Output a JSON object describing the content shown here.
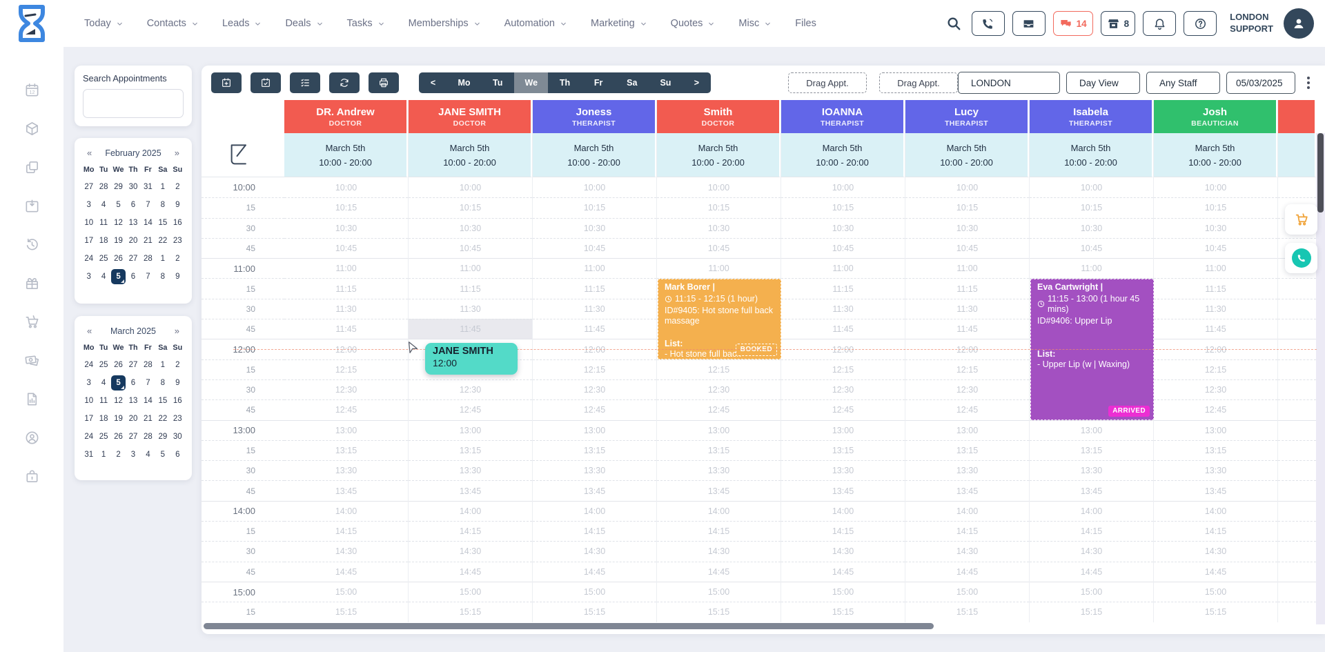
{
  "topbar": {
    "nav": [
      {
        "label": "Today",
        "dropdown": true
      },
      {
        "label": "Contacts",
        "dropdown": true
      },
      {
        "label": "Leads",
        "dropdown": true
      },
      {
        "label": "Deals",
        "dropdown": true
      },
      {
        "label": "Tasks",
        "dropdown": true
      },
      {
        "label": "Memberships",
        "dropdown": true
      },
      {
        "label": "Automation",
        "dropdown": true
      },
      {
        "label": "Marketing",
        "dropdown": true
      },
      {
        "label": "Quotes",
        "dropdown": true
      },
      {
        "label": "Misc",
        "dropdown": true
      },
      {
        "label": "Files",
        "dropdown": false
      }
    ],
    "chat_count": "14",
    "store_count": "8",
    "user_line1": "LONDON",
    "user_line2": "SUPPORT"
  },
  "sidebar_icons": [
    "calendar-12",
    "package",
    "copy",
    "calendar-import",
    "history",
    "gift",
    "cart",
    "payments",
    "report",
    "account",
    "case-lock"
  ],
  "search_panel": {
    "title": "Search Appointments",
    "value": ""
  },
  "calendars": [
    {
      "title": "February 2025",
      "prev": "«",
      "next": "»",
      "dow": [
        "Mo",
        "Tu",
        "We",
        "Th",
        "Fr",
        "Sa",
        "Su"
      ],
      "weeks": [
        [
          27,
          28,
          29,
          30,
          31,
          1,
          2
        ],
        [
          3,
          4,
          5,
          6,
          7,
          8,
          9
        ],
        [
          10,
          11,
          12,
          13,
          14,
          15,
          16
        ],
        [
          17,
          18,
          19,
          20,
          21,
          22,
          23
        ],
        [
          24,
          25,
          26,
          27,
          28,
          1,
          2
        ],
        [
          3,
          4,
          5,
          6,
          7,
          8,
          9
        ]
      ],
      "selected": {
        "week": 5,
        "day": 2
      }
    },
    {
      "title": "March 2025",
      "prev": "«",
      "next": "»",
      "dow": [
        "Mo",
        "Tu",
        "We",
        "Th",
        "Fr",
        "Sa",
        "Su"
      ],
      "weeks": [
        [
          24,
          25,
          26,
          27,
          28,
          1,
          2
        ],
        [
          3,
          4,
          5,
          6,
          7,
          8,
          9
        ],
        [
          10,
          11,
          12,
          13,
          14,
          15,
          16
        ],
        [
          17,
          18,
          19,
          20,
          21,
          22,
          23
        ],
        [
          24,
          25,
          26,
          27,
          28,
          29,
          30
        ],
        [
          31,
          1,
          2,
          3,
          4,
          5,
          6
        ]
      ],
      "selected": {
        "week": 1,
        "day": 2
      }
    }
  ],
  "toolbar": {
    "icon_buttons": [
      "calendar-add",
      "calendar-check",
      "checklist",
      "refresh",
      "print"
    ],
    "week_nav": {
      "prev": "<",
      "next": ">",
      "days": [
        "Mo",
        "Tu",
        "We",
        "Th",
        "Fr",
        "Sa",
        "Su"
      ],
      "active_day": "We"
    },
    "drag_buttons": [
      "Drag Appt.",
      "Drag Appt."
    ],
    "filters": [
      {
        "value": "LONDON"
      },
      {
        "value": "Day View"
      },
      {
        "value": "Any Staff"
      },
      {
        "value": "05/03/2025"
      }
    ]
  },
  "schedule": {
    "staff": [
      {
        "name": "DR. Andrew",
        "role": "DOCTOR",
        "color": "#f25b50"
      },
      {
        "name": "JANE SMITH",
        "role": "DOCTOR",
        "color": "#f25b50"
      },
      {
        "name": "Joness",
        "role": "THERAPIST",
        "color": "#6266e8"
      },
      {
        "name": "Smith",
        "role": "DOCTOR",
        "color": "#f25b50"
      },
      {
        "name": "IOANNA",
        "role": "THERAPIST",
        "color": "#6266e8"
      },
      {
        "name": "Lucy",
        "role": "THERAPIST",
        "color": "#6266e8"
      },
      {
        "name": "Isabela",
        "role": "THERAPIST",
        "color": "#6266e8"
      },
      {
        "name": "Josh",
        "role": "BEAUTICIAN",
        "color": "#30c06d"
      },
      {
        "name": "",
        "role": "",
        "color": "#f25b50",
        "partial": true
      }
    ],
    "date_label": "March 5th",
    "hours_label": "10:00 - 20:00",
    "time_slots": [
      "10:00",
      "10:15",
      "10:30",
      "10:45",
      "11:00",
      "11:15",
      "11:30",
      "11:45",
      "12:00",
      "12:15",
      "12:30",
      "12:45",
      "13:00",
      "13:15",
      "13:30",
      "13:45",
      "14:00",
      "14:15",
      "14:30",
      "14:45",
      "15:00",
      "15:15"
    ],
    "current_time": "12:00",
    "hover_cell": {
      "column": 1,
      "time": "11:45"
    },
    "appointments": [
      {
        "column": 3,
        "start": "11:15",
        "end": "12:15",
        "color": "#f4b04e",
        "title": "Mark Borer |",
        "time_text": "11:15 - 12:15 (1 hour)",
        "service": "ID#9405: Hot stone full back massage",
        "list_label": "List:",
        "list_items": [
          "- Hot stone full back"
        ],
        "status": "BOOKED",
        "status_bg": "#f4b04e",
        "status_style": "dashed",
        "gap": 18
      },
      {
        "column": 6,
        "start": "11:15",
        "end": "13:00",
        "color": "#a350c1",
        "title": "Eva Cartwright |",
        "time_text": "11:15 - 13:00 (1 hour 45 mins)",
        "service": "ID#9406: Upper Lip",
        "list_label": "List:",
        "list_items": [
          "- Upper Lip (w | Waxing)"
        ],
        "status": "ARRIVED",
        "status_bg": "#ec2ed3",
        "status_style": "solid",
        "gap": 33
      }
    ],
    "drag_tooltip": {
      "name": "JANE SMITH",
      "time": "12:00"
    }
  }
}
